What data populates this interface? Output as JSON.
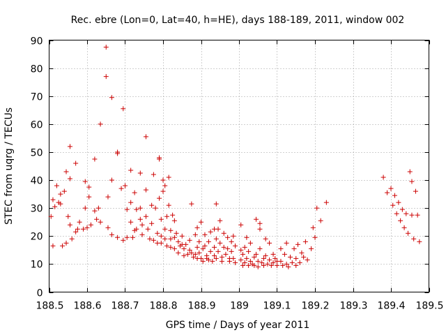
{
  "chart_data": {
    "type": "scatter",
    "title": "Rec. ebre (Lon=0, Lat=40, h=HE), days 188-189, 2011, window 002",
    "xlabel": "GPS time / Days of year 2011",
    "ylabel": "STEC from uqrg / TECUs",
    "xlim": [
      188.5,
      189.5
    ],
    "ylim": [
      0,
      90
    ],
    "xticks": [
      188.5,
      188.6,
      188.7,
      188.8,
      188.9,
      189,
      189.1,
      189.2,
      189.3,
      189.4,
      189.5
    ],
    "xtick_labels": [
      "188.5",
      "188.6",
      "188.7",
      "188.8",
      "188.9",
      "189",
      "189.1",
      "189.2",
      "189.3",
      "189.4",
      "189.5"
    ],
    "yticks": [
      0,
      10,
      20,
      30,
      40,
      50,
      60,
      70,
      80,
      90
    ],
    "ytick_labels": [
      "0",
      "10",
      "20",
      "30",
      "40",
      "50",
      "60",
      "70",
      "80",
      "90"
    ],
    "grid": true,
    "marker": "+",
    "color": "#cc0000",
    "series": [
      {
        "name": "STEC",
        "points": [
          [
            188.505,
            27
          ],
          [
            188.51,
            33
          ],
          [
            188.51,
            16.5
          ],
          [
            188.515,
            30.5
          ],
          [
            188.52,
            38
          ],
          [
            188.525,
            32
          ],
          [
            188.53,
            35
          ],
          [
            188.53,
            31.5
          ],
          [
            188.535,
            16.5
          ],
          [
            188.54,
            36
          ],
          [
            188.545,
            43
          ],
          [
            188.545,
            17.5
          ],
          [
            188.55,
            27
          ],
          [
            188.555,
            52
          ],
          [
            188.555,
            40.5
          ],
          [
            188.555,
            24
          ],
          [
            188.56,
            19
          ],
          [
            188.57,
            46
          ],
          [
            188.57,
            21.5
          ],
          [
            188.575,
            22.5
          ],
          [
            188.58,
            25
          ],
          [
            188.59,
            22.5
          ],
          [
            188.595,
            39.5
          ],
          [
            188.595,
            30
          ],
          [
            188.6,
            23
          ],
          [
            188.605,
            37.5
          ],
          [
            188.605,
            34
          ],
          [
            188.61,
            24
          ],
          [
            188.62,
            47.5
          ],
          [
            188.62,
            29
          ],
          [
            188.625,
            26
          ],
          [
            188.63,
            30
          ],
          [
            188.635,
            60
          ],
          [
            188.635,
            25
          ],
          [
            188.65,
            87.5
          ],
          [
            188.65,
            77
          ],
          [
            188.655,
            34
          ],
          [
            188.655,
            23
          ],
          [
            188.665,
            69.5
          ],
          [
            188.665,
            40
          ],
          [
            188.665,
            20.5
          ],
          [
            188.68,
            50
          ],
          [
            188.68,
            49.5
          ],
          [
            188.68,
            19.5
          ],
          [
            188.69,
            37
          ],
          [
            188.695,
            65.5
          ],
          [
            188.695,
            18.5
          ],
          [
            188.7,
            38
          ],
          [
            188.705,
            29.5
          ],
          [
            188.705,
            19.5
          ],
          [
            188.715,
            43.5
          ],
          [
            188.715,
            32
          ],
          [
            188.715,
            25
          ],
          [
            188.72,
            19.5
          ],
          [
            188.725,
            22
          ],
          [
            188.725,
            35.5
          ],
          [
            188.73,
            29.5
          ],
          [
            188.73,
            22.5
          ],
          [
            188.74,
            42.5
          ],
          [
            188.74,
            30
          ],
          [
            188.74,
            26
          ],
          [
            188.745,
            24
          ],
          [
            188.745,
            20.5
          ],
          [
            188.755,
            55.5
          ],
          [
            188.755,
            36.5
          ],
          [
            188.755,
            27
          ],
          [
            188.76,
            22.5
          ],
          [
            188.765,
            19
          ],
          [
            188.77,
            31
          ],
          [
            188.77,
            24.5
          ],
          [
            188.775,
            18.5
          ],
          [
            188.775,
            42
          ],
          [
            188.78,
            30
          ],
          [
            188.785,
            21
          ],
          [
            188.785,
            17.5
          ],
          [
            188.79,
            47.5
          ],
          [
            188.79,
            48
          ],
          [
            188.79,
            33.5
          ],
          [
            188.795,
            26
          ],
          [
            188.795,
            20
          ],
          [
            188.795,
            17.5
          ],
          [
            188.8,
            40
          ],
          [
            188.8,
            36
          ],
          [
            188.805,
            38
          ],
          [
            188.805,
            22.5
          ],
          [
            188.805,
            19
          ],
          [
            188.81,
            27
          ],
          [
            188.81,
            16.5
          ],
          [
            188.815,
            41
          ],
          [
            188.815,
            31
          ],
          [
            188.82,
            22
          ],
          [
            188.82,
            19
          ],
          [
            188.82,
            16
          ],
          [
            188.825,
            27.5
          ],
          [
            188.83,
            25.5
          ],
          [
            188.83,
            19.5
          ],
          [
            188.83,
            15.5
          ],
          [
            188.835,
            21
          ],
          [
            188.84,
            18
          ],
          [
            188.84,
            14
          ],
          [
            188.845,
            16.5
          ],
          [
            188.85,
            20
          ],
          [
            188.85,
            17
          ],
          [
            188.855,
            13
          ],
          [
            188.855,
            15.5
          ],
          [
            188.86,
            17
          ],
          [
            188.865,
            13.5
          ],
          [
            188.87,
            18.5
          ],
          [
            188.87,
            15
          ],
          [
            188.875,
            31.5
          ],
          [
            188.875,
            14
          ],
          [
            188.88,
            12.5
          ],
          [
            188.885,
            13.5
          ],
          [
            188.885,
            20.5
          ],
          [
            188.89,
            23
          ],
          [
            188.89,
            16
          ],
          [
            188.89,
            12
          ],
          [
            188.895,
            18
          ],
          [
            188.895,
            14
          ],
          [
            188.9,
            25
          ],
          [
            188.9,
            12
          ],
          [
            188.905,
            15.5
          ],
          [
            188.905,
            11
          ],
          [
            188.91,
            20.5
          ],
          [
            188.91,
            16.5
          ],
          [
            188.915,
            13
          ],
          [
            188.915,
            12
          ],
          [
            188.92,
            18
          ],
          [
            188.92,
            11.5
          ],
          [
            188.925,
            21.5
          ],
          [
            188.925,
            14.5
          ],
          [
            188.93,
            11
          ],
          [
            188.935,
            22.5
          ],
          [
            188.935,
            16
          ],
          [
            188.935,
            13
          ],
          [
            188.94,
            31.5
          ],
          [
            188.94,
            19
          ],
          [
            188.94,
            12
          ],
          [
            188.945,
            22.5
          ],
          [
            188.945,
            14.5
          ],
          [
            188.95,
            25.5
          ],
          [
            188.95,
            17.5
          ],
          [
            188.955,
            12.5
          ],
          [
            188.955,
            11
          ],
          [
            188.96,
            21
          ],
          [
            188.96,
            16
          ],
          [
            188.965,
            13.5
          ],
          [
            188.97,
            19.5
          ],
          [
            188.97,
            15.5
          ],
          [
            188.975,
            12
          ],
          [
            188.975,
            11
          ],
          [
            188.98,
            18
          ],
          [
            188.98,
            14.5
          ],
          [
            188.985,
            20
          ],
          [
            188.985,
            12
          ],
          [
            188.99,
            10.5
          ],
          [
            188.99,
            16.5
          ],
          [
            189.005,
            24
          ],
          [
            189.005,
            15
          ],
          [
            189.005,
            11.5
          ],
          [
            189.01,
            9.5
          ],
          [
            189.01,
            13.5
          ],
          [
            189.015,
            16
          ],
          [
            189.015,
            10.5
          ],
          [
            189.02,
            19.5
          ],
          [
            189.02,
            12
          ],
          [
            189.025,
            14.5
          ],
          [
            189.025,
            9.5
          ],
          [
            189.03,
            17.5
          ],
          [
            189.03,
            11
          ],
          [
            189.035,
            10
          ],
          [
            189.04,
            12.5
          ],
          [
            189.04,
            9.5
          ],
          [
            189.045,
            26
          ],
          [
            189.045,
            13.5
          ],
          [
            189.05,
            11
          ],
          [
            189.05,
            9
          ],
          [
            189.055,
            22.5
          ],
          [
            189.055,
            24.5
          ],
          [
            189.055,
            15.5
          ],
          [
            189.06,
            10.5
          ],
          [
            189.065,
            12
          ],
          [
            189.065,
            9.5
          ],
          [
            189.07,
            19
          ],
          [
            189.07,
            13
          ],
          [
            189.075,
            10
          ],
          [
            189.08,
            17.5
          ],
          [
            189.08,
            11.5
          ],
          [
            189.085,
            9.5
          ],
          [
            189.09,
            13.5
          ],
          [
            189.09,
            10.5
          ],
          [
            189.095,
            12
          ],
          [
            189.1,
            9.5
          ],
          [
            189.1,
            11
          ],
          [
            189.11,
            15.5
          ],
          [
            189.11,
            11
          ],
          [
            189.115,
            9.5
          ],
          [
            189.12,
            13.5
          ],
          [
            189.125,
            17.5
          ],
          [
            189.125,
            10
          ],
          [
            189.13,
            9
          ],
          [
            189.135,
            12.5
          ],
          [
            189.14,
            10.5
          ],
          [
            189.145,
            15.5
          ],
          [
            189.15,
            9.5
          ],
          [
            189.15,
            12
          ],
          [
            189.155,
            17
          ],
          [
            189.16,
            10.5
          ],
          [
            189.165,
            14
          ],
          [
            189.17,
            12.5
          ],
          [
            189.175,
            18
          ],
          [
            189.18,
            11.5
          ],
          [
            189.19,
            15.5
          ],
          [
            189.195,
            23
          ],
          [
            189.2,
            19.5
          ],
          [
            189.205,
            30
          ],
          [
            189.215,
            25.5
          ],
          [
            189.23,
            32
          ],
          [
            189.38,
            41
          ],
          [
            189.39,
            35.5
          ],
          [
            189.4,
            37
          ],
          [
            189.405,
            31
          ],
          [
            189.41,
            34.5
          ],
          [
            189.415,
            28
          ],
          [
            189.42,
            32
          ],
          [
            189.425,
            25.5
          ],
          [
            189.43,
            29.5
          ],
          [
            189.435,
            23
          ],
          [
            189.44,
            28
          ],
          [
            189.445,
            21
          ],
          [
            189.45,
            43
          ],
          [
            189.455,
            27.5
          ],
          [
            189.455,
            39.5
          ],
          [
            189.46,
            19
          ],
          [
            189.465,
            36
          ],
          [
            189.47,
            27.5
          ],
          [
            189.475,
            18
          ]
        ]
      }
    ]
  }
}
